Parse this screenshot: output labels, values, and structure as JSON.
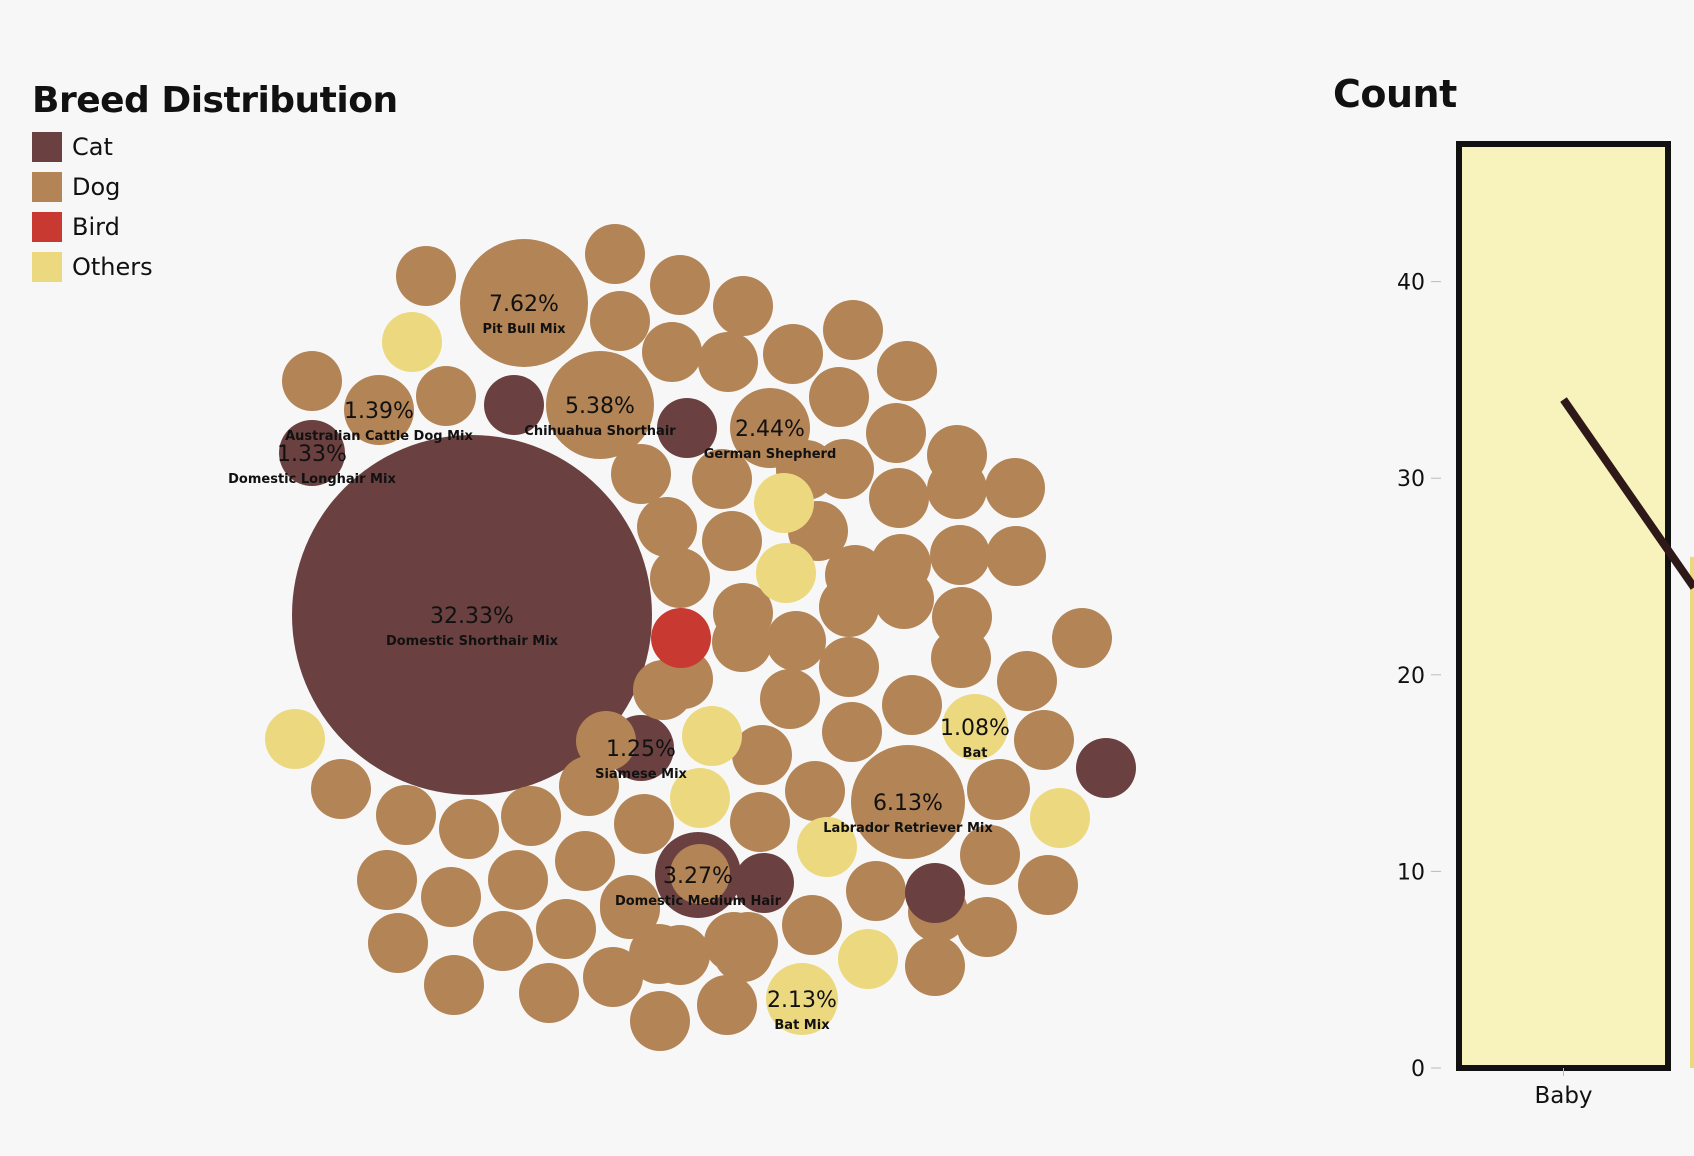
{
  "legend": {
    "title": "Breed Distribution",
    "items": [
      {
        "label": "Cat",
        "color": "#6a4140"
      },
      {
        "label": "Dog",
        "color": "#b38456"
      },
      {
        "label": "Bird",
        "color": "#c83a31"
      },
      {
        "label": "Others",
        "color": "#ecd97f"
      }
    ]
  },
  "chart_data": [
    {
      "type": "bubble",
      "title": "Breed Distribution",
      "groups": [
        "Cat",
        "Dog",
        "Bird",
        "Others"
      ],
      "labeled_bubbles": [
        {
          "group": "Cat",
          "percent": "32.33%",
          "breed": "Domestic Shorthair Mix",
          "value": 32.33
        },
        {
          "group": "Dog",
          "percent": "7.62%",
          "breed": "Pit Bull Mix",
          "value": 7.62
        },
        {
          "group": "Dog",
          "percent": "6.13%",
          "breed": "Labrador Retriever Mix",
          "value": 6.13
        },
        {
          "group": "Dog",
          "percent": "5.38%",
          "breed": "Chihuahua Shorthair",
          "value": 5.38
        },
        {
          "group": "Cat",
          "percent": "3.27%",
          "breed": "Domestic Medium Hair",
          "value": 3.27
        },
        {
          "group": "Dog",
          "percent": "2.44%",
          "breed": "German Shepherd",
          "value": 2.44
        },
        {
          "group": "Others",
          "percent": "2.13%",
          "breed": "Bat Mix",
          "value": 2.13
        },
        {
          "group": "Dog",
          "percent": "1.39%",
          "breed": "Australian Cattle Dog Mix",
          "value": 1.39
        },
        {
          "group": "Cat",
          "percent": "1.33%",
          "breed": "Domestic Longhair Mix",
          "value": 1.33
        },
        {
          "group": "Cat",
          "percent": "1.25%",
          "breed": "Siamese Mix",
          "value": 1.25
        },
        {
          "group": "Others",
          "percent": "1.08%",
          "breed": "Bat",
          "value": 1.08
        }
      ],
      "unlabeled_bubble_groups": [
        "Dog",
        "Dog",
        "Dog",
        "Dog",
        "Dog",
        "Dog",
        "Dog",
        "Dog",
        "Dog",
        "Dog",
        "Dog",
        "Dog",
        "Dog",
        "Dog",
        "Dog",
        "Dog",
        "Dog",
        "Dog",
        "Dog",
        "Dog",
        "Dog",
        "Dog",
        "Dog",
        "Dog",
        "Dog",
        "Dog",
        "Dog",
        "Dog",
        "Dog",
        "Dog",
        "Dog",
        "Dog",
        "Dog",
        "Dog",
        "Dog",
        "Dog",
        "Dog",
        "Dog",
        "Dog",
        "Dog",
        "Dog",
        "Dog",
        "Dog",
        "Dog",
        "Dog",
        "Dog",
        "Dog",
        "Dog",
        "Dog",
        "Dog",
        "Dog",
        "Dog",
        "Dog",
        "Dog",
        "Dog",
        "Dog",
        "Dog",
        "Dog",
        "Dog",
        "Dog",
        "Dog",
        "Dog",
        "Dog",
        "Dog",
        "Dog",
        "Dog",
        "Dog",
        "Dog",
        "Dog",
        "Dog",
        "Dog",
        "Dog",
        "Dog",
        "Dog",
        "Dog",
        "Dog",
        "Dog",
        "Dog",
        "Dog",
        "Dog",
        "Dog",
        "Dog",
        "Dog",
        "Dog",
        "Dog",
        "Cat",
        "Cat",
        "Cat",
        "Cat",
        "Cat",
        "Others",
        "Others",
        "Others",
        "Others",
        "Others",
        "Others",
        "Others",
        "Others",
        "Others",
        "Bird"
      ]
    },
    {
      "type": "bar",
      "title": "Count",
      "categories": [
        "Baby"
      ],
      "values": [
        47
      ],
      "ylim": [
        0,
        47
      ],
      "yticks": [
        0,
        10,
        20,
        30,
        40
      ],
      "line_series": {
        "x": [
          "Baby"
        ],
        "values": [
          34
        ]
      },
      "bar_fill": "#f8f2bc",
      "bar_stroke": "#111111",
      "line_color": "#2f1918",
      "partial_next_bar_color": "#ecd97f"
    }
  ]
}
